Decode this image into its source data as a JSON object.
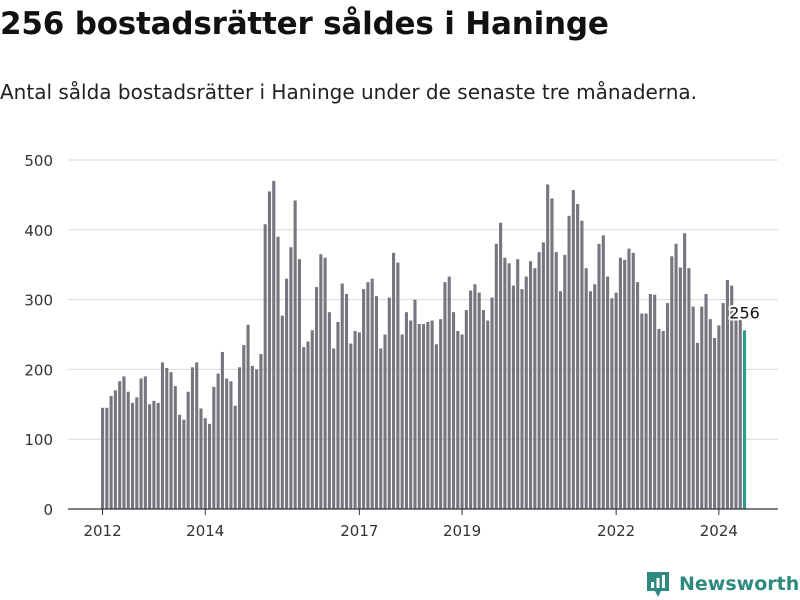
{
  "header": {
    "title": "256 bostadsrätter såldes i Haninge",
    "subtitle": "Antal sålda bostadsrätter i Haninge under de senaste tre månaderna."
  },
  "brand": {
    "name": "Newsworthy"
  },
  "colors": {
    "bar": "#76767e",
    "highlight": "#2a9d8f",
    "grid": "#d9d9d9",
    "axis": "#333333",
    "brand": "#2e8a7e"
  },
  "chart_data": {
    "type": "bar",
    "title": "256 bostadsrätter såldes i Haninge",
    "subtitle": "Antal sålda bostadsrätter i Haninge under de senaste tre månaderna.",
    "xlabel": "",
    "ylabel": "",
    "ylim": [
      0,
      500
    ],
    "yticks": [
      0,
      100,
      200,
      300,
      400,
      500
    ],
    "grid": true,
    "start": "2012-01",
    "frequency": "monthly",
    "xticks": [
      {
        "label": "2012",
        "index": 0
      },
      {
        "label": "2014",
        "index": 24
      },
      {
        "label": "2017",
        "index": 60
      },
      {
        "label": "2019",
        "index": 84
      },
      {
        "label": "2022",
        "index": 120
      },
      {
        "label": "2024",
        "index": 144
      }
    ],
    "values": [
      145,
      145,
      162,
      170,
      183,
      190,
      168,
      152,
      160,
      187,
      190,
      150,
      155,
      152,
      210,
      202,
      196,
      176,
      135,
      128,
      168,
      203,
      210,
      144,
      130,
      122,
      175,
      194,
      225,
      187,
      183,
      148,
      203,
      235,
      264,
      205,
      200,
      222,
      408,
      455,
      470,
      390,
      277,
      330,
      375,
      442,
      358,
      232,
      240,
      256,
      318,
      365,
      360,
      282,
      230,
      268,
      323,
      308,
      237,
      255,
      253,
      315,
      325,
      330,
      305,
      230,
      250,
      303,
      367,
      353,
      250,
      282,
      270,
      300,
      265,
      265,
      268,
      270,
      236,
      272,
      325,
      333,
      282,
      255,
      250,
      285,
      313,
      322,
      310,
      285,
      270,
      303,
      380,
      410,
      360,
      352,
      320,
      358,
      315,
      333,
      355,
      345,
      368,
      382,
      465,
      445,
      368,
      312,
      364,
      420,
      457,
      437,
      413,
      345,
      312,
      322,
      380,
      392,
      333,
      302,
      310,
      360,
      357,
      373,
      367,
      325,
      280,
      280,
      308,
      307,
      258,
      255,
      295,
      362,
      380,
      346,
      395,
      345,
      290,
      238,
      290,
      308,
      272,
      245,
      263,
      295,
      328,
      320,
      285,
      272,
      256
    ],
    "highlight": {
      "index": 150,
      "value": 256,
      "label": "256"
    }
  }
}
